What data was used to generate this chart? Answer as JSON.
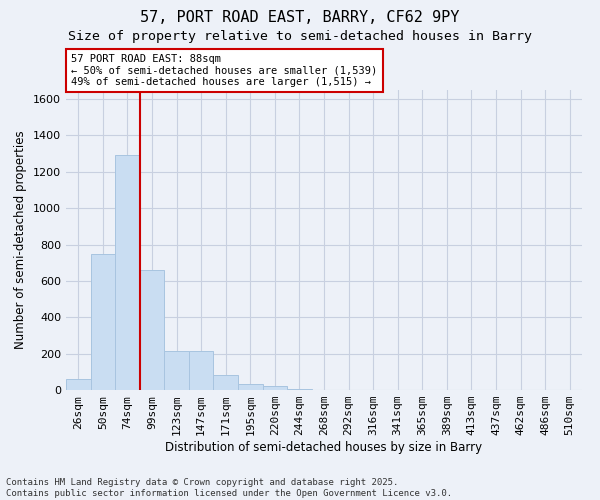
{
  "title_line1": "57, PORT ROAD EAST, BARRY, CF62 9PY",
  "title_line2": "Size of property relative to semi-detached houses in Barry",
  "xlabel": "Distribution of semi-detached houses by size in Barry",
  "ylabel": "Number of semi-detached properties",
  "categories": [
    "26sqm",
    "50sqm",
    "74sqm",
    "99sqm",
    "123sqm",
    "147sqm",
    "171sqm",
    "195sqm",
    "220sqm",
    "244sqm",
    "268sqm",
    "292sqm",
    "316sqm",
    "341sqm",
    "365sqm",
    "389sqm",
    "413sqm",
    "437sqm",
    "462sqm",
    "486sqm",
    "510sqm"
  ],
  "values": [
    60,
    750,
    1290,
    660,
    215,
    215,
    80,
    35,
    20,
    8,
    2,
    0,
    0,
    0,
    0,
    0,
    0,
    0,
    0,
    0,
    0
  ],
  "bar_color": "#c9ddf2",
  "bar_edge_color": "#a8c4e0",
  "grid_color": "#c8d0e0",
  "background_color": "#edf1f8",
  "annotation_text": "57 PORT ROAD EAST: 88sqm\n← 50% of semi-detached houses are smaller (1,539)\n49% of semi-detached houses are larger (1,515) →",
  "annotation_box_color": "#ffffff",
  "annotation_border_color": "#cc0000",
  "footnote": "Contains HM Land Registry data © Crown copyright and database right 2025.\nContains public sector information licensed under the Open Government Licence v3.0.",
  "ylim": [
    0,
    1650
  ],
  "yticks": [
    0,
    200,
    400,
    600,
    800,
    1000,
    1200,
    1400,
    1600
  ],
  "title_fontsize": 11,
  "subtitle_fontsize": 9.5,
  "axis_label_fontsize": 8.5,
  "tick_fontsize": 8,
  "annotation_fontsize": 7.5,
  "footnote_fontsize": 6.5,
  "figsize": [
    6.0,
    5.0
  ],
  "dpi": 100
}
